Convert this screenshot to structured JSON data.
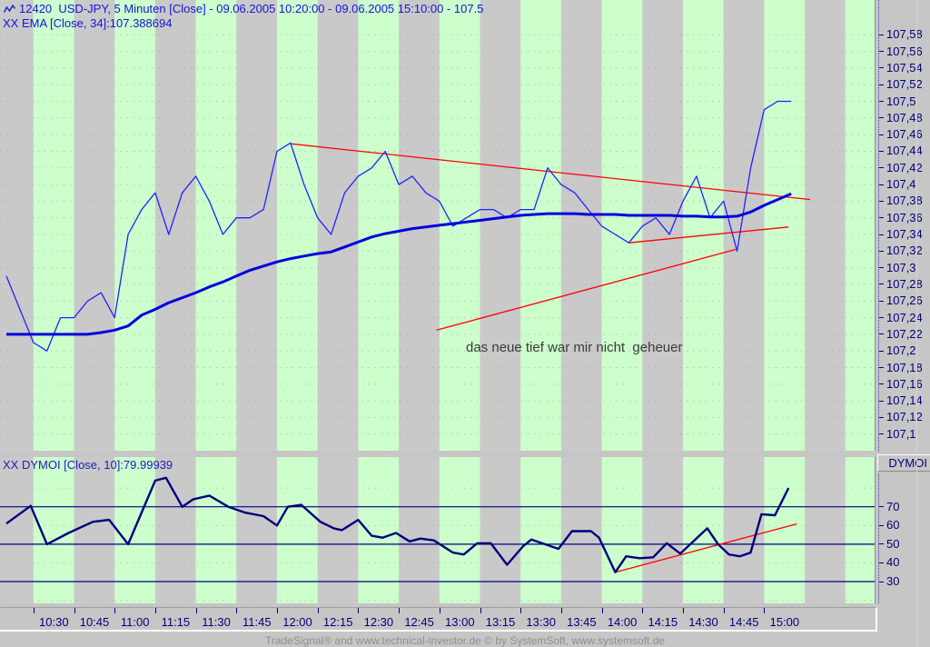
{
  "header": {
    "line1": "12420  USD-JPY, 5 Minuten [Close] - 09.06.2005 10:20:00 - 09.06.2005 15:10:00 - 107.5",
    "line2": "XX EMA [Close, 34]:107.388694"
  },
  "dymoi_header": "XX DYMOI [Close, 10]:79.99939",
  "dymoi_box_label": "DYMOI",
  "annotation": {
    "text": "das neue tief war mir nicht  geheuer"
  },
  "footer": {
    "text": "TradeSignal® and www.technical-investor.de © by SystemSoft, www.systemsoft.de"
  },
  "colors": {
    "band_green": "#ccffcc",
    "band_gray": "#c9c9c9",
    "grid_dots": "#c5a3b0",
    "axis_text": "#00007a",
    "price_line": "#2222ff",
    "ema_line": "#0000dd",
    "dymoi_line": "#00007d",
    "level_line": "#000080",
    "trendline": "#ff0000",
    "panel_edge": "#909090"
  },
  "time_axis": {
    "start_min": 10,
    "step_min": 15,
    "labels": [
      "10:30",
      "10:45",
      "11:00",
      "11:15",
      "11:30",
      "11:45",
      "12:00",
      "12:15",
      "12:30",
      "12:45",
      "13:00",
      "13:15",
      "13:30",
      "13:45",
      "14:00",
      "14:15",
      "14:30",
      "14:45",
      "15:00"
    ]
  },
  "chart_data": [
    {
      "type": "line",
      "name": "USD-JPY 5 Minuten price panel",
      "x_unit": "minutes since 10:20",
      "ylim": [
        107.08,
        107.62
      ],
      "y_ticks": [
        {
          "value": 107.58,
          "label": "107,58"
        },
        {
          "value": 107.56,
          "label": "107,56"
        },
        {
          "value": 107.54,
          "label": "107,54"
        },
        {
          "value": 107.52,
          "label": "107,52"
        },
        {
          "value": 107.5,
          "label": "107,5"
        },
        {
          "value": 107.48,
          "label": "107,48"
        },
        {
          "value": 107.46,
          "label": "107,46"
        },
        {
          "value": 107.44,
          "label": "107,44"
        },
        {
          "value": 107.42,
          "label": "107,42"
        },
        {
          "value": 107.4,
          "label": "107,4"
        },
        {
          "value": 107.38,
          "label": "107,38"
        },
        {
          "value": 107.36,
          "label": "107,36"
        },
        {
          "value": 107.34,
          "label": "107,34"
        },
        {
          "value": 107.32,
          "label": "107,32"
        },
        {
          "value": 107.3,
          "label": "107,3"
        },
        {
          "value": 107.28,
          "label": "107,28"
        },
        {
          "value": 107.26,
          "label": "107,26"
        },
        {
          "value": 107.24,
          "label": "107,24"
        },
        {
          "value": 107.22,
          "label": "107,22"
        },
        {
          "value": 107.2,
          "label": "107,2"
        },
        {
          "value": 107.18,
          "label": "107,18"
        },
        {
          "value": 107.16,
          "label": "107,16"
        },
        {
          "value": 107.14,
          "label": "107,14"
        },
        {
          "value": 107.12,
          "label": "107,12"
        },
        {
          "value": 107.1,
          "label": "107,1"
        }
      ],
      "series": [
        {
          "name": "USD-JPY Close",
          "color": "#2222ff",
          "width": 1.3,
          "start_min": 0,
          "step_min": 5,
          "values": [
            107.29,
            107.25,
            107.21,
            107.2,
            107.24,
            107.24,
            107.26,
            107.27,
            107.24,
            107.34,
            107.37,
            107.39,
            107.34,
            107.39,
            107.41,
            107.38,
            107.34,
            107.36,
            107.36,
            107.37,
            107.44,
            107.45,
            107.4,
            107.36,
            107.34,
            107.39,
            107.41,
            107.42,
            107.44,
            107.4,
            107.41,
            107.39,
            107.38,
            107.35,
            107.36,
            107.37,
            107.37,
            107.36,
            107.37,
            107.37,
            107.42,
            107.4,
            107.39,
            107.37,
            107.35,
            107.34,
            107.33,
            107.35,
            107.36,
            107.34,
            107.38,
            107.41,
            107.36,
            107.38,
            107.32,
            107.42,
            107.49,
            107.5,
            107.5
          ]
        },
        {
          "name": "EMA [Close, 34]",
          "color": "#0000dd",
          "width": 3,
          "start_min": 0,
          "step_min": 5,
          "values": [
            107.22,
            107.22,
            107.22,
            107.22,
            107.22,
            107.22,
            107.22,
            107.222,
            107.225,
            107.23,
            107.243,
            107.25,
            107.258,
            107.264,
            107.27,
            107.277,
            107.283,
            107.29,
            107.297,
            107.302,
            107.307,
            107.311,
            107.314,
            107.317,
            107.319,
            107.325,
            107.331,
            107.337,
            107.341,
            107.344,
            107.347,
            107.349,
            107.351,
            107.353,
            107.355,
            107.357,
            107.359,
            107.361,
            107.363,
            107.364,
            107.365,
            107.365,
            107.365,
            107.364,
            107.364,
            107.364,
            107.363,
            107.363,
            107.363,
            107.363,
            107.362,
            107.362,
            107.361,
            107.361,
            107.362,
            107.367,
            107.375,
            107.382,
            107.389
          ]
        }
      ],
      "trendlines": [
        {
          "name": "descending resistance",
          "from": [
            105,
            107.449
          ],
          "to": [
            297,
            107.382
          ]
        },
        {
          "name": "rising support long",
          "from": [
            159,
            107.225
          ],
          "to": [
            269.5,
            107.322
          ]
        },
        {
          "name": "rising support short",
          "from": [
            230,
            107.33
          ],
          "to": [
            289,
            107.349
          ]
        }
      ]
    },
    {
      "type": "line",
      "name": "DYMOI indicator panel",
      "x_unit": "minutes since 10:20",
      "ylim": [
        18,
        96
      ],
      "y_ticks": [
        {
          "value": 70,
          "label": "70"
        },
        {
          "value": 60,
          "label": "60"
        },
        {
          "value": 50,
          "label": "50"
        },
        {
          "value": 40,
          "label": "40"
        },
        {
          "value": 30,
          "label": "30"
        }
      ],
      "levels_solid": [
        70,
        50,
        30
      ],
      "levels_dotted": [
        80,
        60,
        40,
        20
      ],
      "series": [
        {
          "name": "DYMOI [Close, 10]",
          "color": "#00007d",
          "width": 2.4,
          "points": [
            [
              0,
              61
            ],
            [
              9,
              70.5
            ],
            [
              15,
              50
            ],
            [
              23,
              56
            ],
            [
              32,
              62
            ],
            [
              38,
              63
            ],
            [
              45,
              50
            ],
            [
              55,
              84
            ],
            [
              59,
              85.5
            ],
            [
              65,
              70
            ],
            [
              69,
              74
            ],
            [
              75,
              76
            ],
            [
              82,
              70
            ],
            [
              88,
              67
            ],
            [
              95,
              65
            ],
            [
              100,
              60
            ],
            [
              104,
              70
            ],
            [
              109,
              71
            ],
            [
              116,
              62
            ],
            [
              121,
              58.5
            ],
            [
              124,
              57.5
            ],
            [
              130,
              63
            ],
            [
              135,
              54.5
            ],
            [
              139,
              53.5
            ],
            [
              144,
              56
            ],
            [
              149,
              51.5
            ],
            [
              153,
              53
            ],
            [
              158,
              52
            ],
            [
              165,
              45.5
            ],
            [
              169,
              44.5
            ],
            [
              174,
              50.5
            ],
            [
              179,
              50.5
            ],
            [
              185,
              39
            ],
            [
              191,
              49
            ],
            [
              194,
              52.5
            ],
            [
              199,
              50
            ],
            [
              204,
              47.5
            ],
            [
              209,
              57
            ],
            [
              216,
              57
            ],
            [
              219,
              53.5
            ],
            [
              225,
              35
            ],
            [
              229,
              43.5
            ],
            [
              234,
              42.5
            ],
            [
              239,
              43
            ],
            [
              244,
              50.5
            ],
            [
              249,
              45
            ],
            [
              259,
              58.5
            ],
            [
              263,
              50
            ],
            [
              267,
              44.5
            ],
            [
              271,
              43.5
            ],
            [
              275,
              45.5
            ],
            [
              279,
              66
            ],
            [
              284,
              65.5
            ],
            [
              289,
              80
            ]
          ]
        }
      ],
      "trendlines": [
        {
          "name": "rising support",
          "from": [
            225,
            35
          ],
          "to": [
            292,
            60.8
          ]
        }
      ]
    }
  ]
}
